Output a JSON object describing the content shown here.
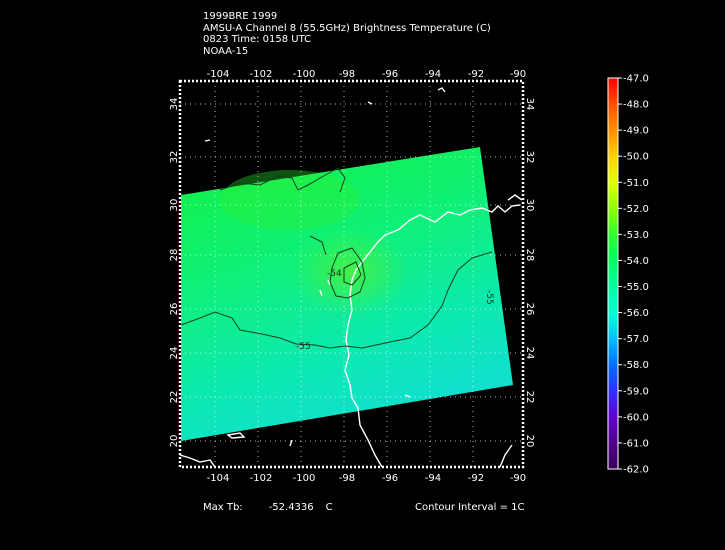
{
  "header": {
    "line1": "1999BRE 1999",
    "line2": "AMSU-A Channel 8 (55.5GHz) Brightness Temperature (C)",
    "line3": "0823 Time: 0158 UTC",
    "line4": "NOAA-15"
  },
  "map": {
    "lon_labels": [
      "-104",
      "-102",
      "-100",
      "-98",
      "-96",
      "-94",
      "-92",
      "-90"
    ],
    "lat_labels": [
      "20",
      "22",
      "24",
      "26",
      "28",
      "30",
      "32",
      "34"
    ],
    "contour_labels": [
      "-54",
      "-55",
      "-55"
    ]
  },
  "colorbar": {
    "labels": [
      "-47.0",
      "-48.0",
      "-49.0",
      "-50.0",
      "-51.0",
      "-52.0",
      "-53.0",
      "-54.0",
      "-55.0",
      "-56.0",
      "-57.0",
      "-58.0",
      "-59.0",
      "-60.0",
      "-61.0",
      "-62.0"
    ],
    "colors": [
      "#ff0000",
      "#ff5000",
      "#ff9000",
      "#ffd000",
      "#e0ff00",
      "#90ff00",
      "#30ff30",
      "#00ff60",
      "#00ffa0",
      "#00ffd0",
      "#00c0ff",
      "#0070ff",
      "#3030ff",
      "#6000d0",
      "#50008a",
      "#3a0060"
    ]
  },
  "footer": {
    "max_label": "Max Tb:",
    "max_value": "-52.4336",
    "max_unit": "C",
    "contour": "Contour Interval = 1C"
  }
}
